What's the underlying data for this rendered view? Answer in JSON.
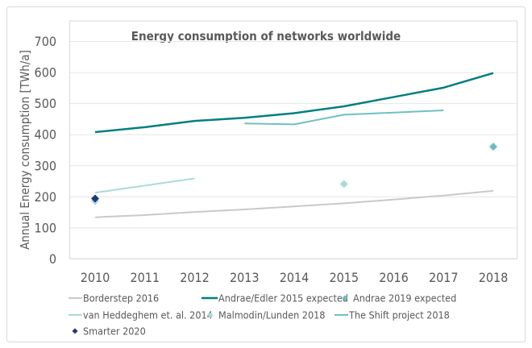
{
  "chart_data": {
    "type": "line",
    "title": "Energy consumption of networks worldwide",
    "xlabel": "",
    "ylabel": "Annual Energy consumption [TWh/a]",
    "ylim": [
      0,
      700
    ],
    "yticks": [
      "0",
      "100",
      "200",
      "300",
      "400",
      "500",
      "600",
      "700"
    ],
    "categories": [
      "2010",
      "2011",
      "2012",
      "2013",
      "2014",
      "2015",
      "2016",
      "2017",
      "2018"
    ],
    "grid": true,
    "legend_position": "bottom",
    "series": [
      {
        "name": "Borderstep 2016",
        "kind": "line",
        "color": "#C9C9C9",
        "x": [
          2010,
          2011,
          2012,
          2013,
          2014,
          2015,
          2016,
          2017,
          2018
        ],
        "values": [
          133,
          140,
          150,
          158,
          168,
          178,
          190,
          203,
          218
        ]
      },
      {
        "name": "Andrae/Edler 2015 expected",
        "kind": "line",
        "color": "#007F80",
        "x": [
          2010,
          2011,
          2012,
          2013,
          2014,
          2015,
          2016,
          2017,
          2018
        ],
        "values": [
          407,
          423,
          443,
          453,
          468,
          490,
          520,
          550,
          597
        ]
      },
      {
        "name": "Andrae 2019 expected",
        "kind": "marker",
        "color": "#6CBDBD",
        "x": [
          2018
        ],
        "values": [
          360
        ]
      },
      {
        "name": "van Heddeghem et. al. 2014",
        "kind": "line",
        "color": "#A9DBDB",
        "x": [
          2010,
          2011,
          2012
        ],
        "values": [
          212,
          235,
          258
        ]
      },
      {
        "name": "Malmodin/Lunden 2018",
        "kind": "marker",
        "color": "#A9DBDB",
        "x": [
          2010,
          2015
        ],
        "values": [
          185,
          240
        ]
      },
      {
        "name": "The Shift project 2018",
        "kind": "line",
        "color": "#6FC0C0",
        "x": [
          2013,
          2014,
          2015,
          2016,
          2017
        ],
        "values": [
          435,
          432,
          463,
          470,
          477
        ]
      },
      {
        "name": "Smarter 2020",
        "kind": "marker",
        "color": "#1F3A73",
        "x": [
          2010
        ],
        "values": [
          193
        ]
      }
    ]
  }
}
